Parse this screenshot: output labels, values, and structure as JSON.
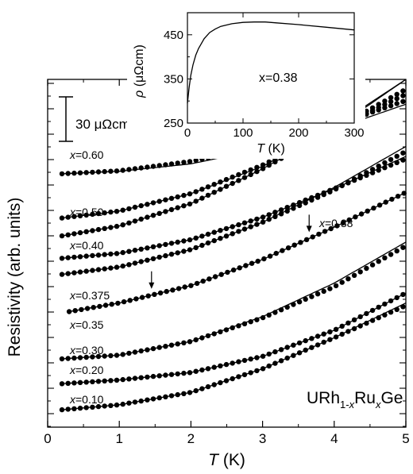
{
  "chart_data": [
    {
      "id": "main",
      "type": "scatter",
      "title": "",
      "xlabel_italic": "T",
      "xlabel_unit": " (K)",
      "ylabel": "Resistivity  (arb. units)",
      "xlim": [
        0,
        5
      ],
      "xticks": [
        "0",
        "1",
        "2",
        "3",
        "4",
        "5"
      ],
      "y_scale": "arbitrary (curves vertically offset)",
      "scale_bar_label": "30 μΩcm",
      "compound": {
        "base": "URh",
        "sub1": "1-",
        "sub1x": "x",
        "mid": "Ru",
        "sub2": "x",
        "end": "Ge"
      },
      "series": [
        {
          "name": "x=0.60",
          "x_prefix": "x",
          "x_value": "=0.60",
          "t": [
            0.2,
            1,
            2,
            3,
            4,
            5
          ],
          "y": [
            2.0,
            3.2,
            7.0,
            13.0,
            21.5,
            31.5
          ],
          "fit_t": [
            0.2,
            1,
            2,
            3,
            4,
            5
          ],
          "fit_y": [
            2.0,
            3.0,
            6.0,
            12.0,
            20.0,
            30.0
          ]
        },
        {
          "name": "x=0.50",
          "x_prefix": "x",
          "x_value": "=0.50",
          "t": [
            0.2,
            1,
            2,
            3,
            4,
            5
          ],
          "y": [
            -15.8,
            -13.0,
            -6.0,
            5.5,
            20.0,
            34.0
          ],
          "fit_t": [
            0.2,
            1,
            2,
            3,
            4,
            5
          ],
          "fit_y": [
            -15.8,
            -13.0,
            -6.0,
            5.0,
            21.0,
            40.0
          ]
        },
        {
          "name": "x=0.40",
          "x_prefix": "x",
          "x_value": "=0.40",
          "t": [
            0.2,
            1,
            2,
            3,
            4,
            5
          ],
          "y": [
            -23.0,
            -19.0,
            -10.0,
            4.0,
            20.0,
            36.0
          ],
          "fit_t": [
            0.2,
            1,
            2,
            3,
            4,
            5
          ],
          "fit_y": [
            -23.0,
            -19.0,
            -10.0,
            4.0,
            20.0,
            40.0
          ]
        },
        {
          "name": "x=0.38",
          "x_prefix": "x",
          "x_value": "=0.38",
          "t": [
            0.2,
            1,
            2,
            3,
            4,
            5
          ],
          "y": [
            -32.0,
            -30.0,
            -24.5,
            -15.5,
            -4.0,
            8.0
          ],
          "fit_t": [
            0.2,
            1,
            2,
            3,
            4,
            5
          ],
          "fit_y": [
            -32.0,
            -30.0,
            -24.5,
            -15.5,
            -4.0,
            9.0
          ]
        },
        {
          "name": "x=0.375",
          "x_prefix": "x",
          "x_value": "=0.375",
          "t": [
            0.2,
            1,
            2,
            3,
            4,
            5
          ],
          "y": [
            -38.5,
            -35.5,
            -28.5,
            -17.5,
            -4.5,
            11.0
          ],
          "fit_t": [
            0.2,
            1,
            2,
            3,
            4,
            5
          ],
          "fit_y": [
            -38.5,
            -35.5,
            -28.5,
            -17.5,
            -3.5,
            13.0
          ]
        },
        {
          "name": "x=0.35",
          "x_prefix": "x",
          "x_value": "=0.35",
          "t": [
            0.3,
            1,
            2,
            3,
            4,
            5
          ],
          "y": [
            -53.5,
            -50.0,
            -43.0,
            -32.5,
            -19.5,
            -5.5
          ],
          "fit_t": [
            0.3,
            1,
            2,
            3,
            4,
            5
          ],
          "fit_y": [
            -53.5,
            -50.0,
            -43.0,
            -32.5,
            -19.5,
            -5.5
          ]
        },
        {
          "name": "x=0.30",
          "x_prefix": "x",
          "x_value": "=0.30",
          "t": [
            0.2,
            1,
            2,
            3,
            4,
            5
          ],
          "y": [
            -72.5,
            -71.0,
            -65.5,
            -56.0,
            -43.5,
            -27.0
          ],
          "fit_t": [
            0.2,
            1,
            2,
            3,
            4,
            5
          ],
          "fit_y": [
            -72.5,
            -71.0,
            -65.5,
            -55.5,
            -42.0,
            -25.5
          ]
        },
        {
          "name": "x=0.20",
          "x_prefix": "x",
          "x_value": "=0.20",
          "t": [
            0.2,
            1,
            2,
            3,
            4,
            5
          ],
          "y": [
            -82.5,
            -81.0,
            -78.0,
            -71.5,
            -61.0,
            -46.0
          ],
          "fit_t": [
            0.2,
            1,
            2,
            3,
            4,
            5
          ],
          "fit_y": [
            -82.5,
            -81.0,
            -78.0,
            -71.5,
            -61.0,
            -46.0
          ]
        },
        {
          "name": "x=0.10",
          "x_prefix": "x",
          "x_value": "=0.10",
          "t": [
            0.2,
            1,
            2,
            3,
            4,
            5
          ],
          "y": [
            -93.0,
            -91.0,
            -86.0,
            -76.5,
            -64.0,
            -51.0
          ],
          "fit_t": [
            0.2,
            1,
            2,
            3,
            4,
            5
          ],
          "fit_y": [
            -93.0,
            -91.0,
            -86.0,
            -76.5,
            -64.0,
            -50.0
          ]
        }
      ],
      "annotations": [
        {
          "text": "arrow",
          "series": "x=0.35",
          "t": 1.45
        },
        {
          "text": "arrow",
          "series": "x=0.35",
          "t": 3.65
        }
      ]
    },
    {
      "id": "inset",
      "type": "line",
      "title": "",
      "xlabel_italic": "T",
      "xlabel_unit": " (K)",
      "ylabel_italic": "ρ",
      "ylabel_unit": "  (μΩcm)",
      "annotation": "x=0.38",
      "xlim": [
        0,
        300
      ],
      "ylim": [
        250,
        500
      ],
      "xticks": [
        0,
        100,
        200,
        300
      ],
      "yticks": [
        250,
        350,
        450
      ],
      "x": [
        0,
        3,
        6,
        10,
        15,
        20,
        30,
        40,
        50,
        60,
        80,
        100,
        120,
        140,
        160,
        200,
        250,
        300
      ],
      "y": [
        295,
        330,
        358,
        382,
        404,
        419,
        441,
        455,
        463,
        469,
        475,
        478,
        479,
        479,
        477,
        473,
        467,
        461
      ]
    }
  ]
}
